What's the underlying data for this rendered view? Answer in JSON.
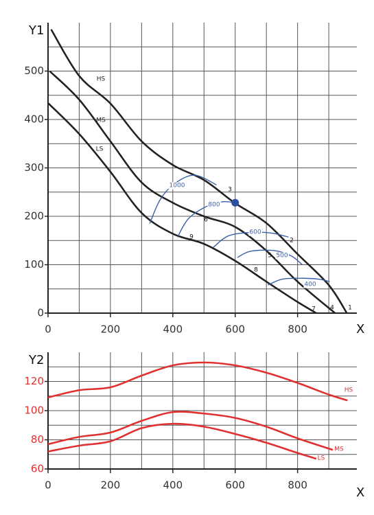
{
  "chart_data": [
    {
      "type": "line",
      "ylabel": "Y1",
      "xlabel": "X",
      "xlim": [
        0,
        990
      ],
      "ylim": [
        0,
        600
      ],
      "xticks": [
        0,
        200,
        400,
        600,
        800
      ],
      "yticks": [
        0,
        100,
        200,
        300,
        400,
        500
      ],
      "xgrid": [
        0,
        100,
        200,
        300,
        400,
        500,
        600,
        700,
        800,
        900
      ],
      "ygrid": [
        0,
        50,
        100,
        150,
        200,
        250,
        300,
        350,
        400,
        450,
        500,
        550
      ],
      "tick_color": "#333",
      "series": [
        {
          "name": "HS",
          "color": "#222",
          "x": [
            10,
            100,
            200,
            300,
            400,
            500,
            600,
            700,
            800,
            900,
            958
          ],
          "values": [
            586,
            490,
            433,
            355,
            306,
            275,
            227,
            186,
            122,
            58,
            0
          ]
        },
        {
          "name": "MS",
          "color": "#222",
          "x": [
            5,
            100,
            200,
            300,
            400,
            500,
            600,
            700,
            800,
            920
          ],
          "values": [
            500,
            441,
            355,
            270,
            228,
            200,
            178,
            129,
            65,
            0
          ]
        },
        {
          "name": "LS",
          "color": "#222",
          "x": [
            0,
            100,
            200,
            300,
            400,
            500,
            600,
            700,
            800,
            860
          ],
          "values": [
            434,
            370,
            292,
            207,
            164,
            143,
            108,
            65,
            23,
            0
          ]
        },
        {
          "name": "1000",
          "color": "#3a5fa8",
          "x": [
            326,
            360,
            407,
            470,
            540
          ],
          "values": [
            185,
            235,
            268,
            285,
            265
          ]
        },
        {
          "name": "800",
          "color": "#3a5fa8",
          "x": [
            415,
            450,
            507,
            560,
            600
          ],
          "values": [
            157,
            195,
            220,
            230,
            228
          ]
        },
        {
          "name": "600",
          "color": "#3a5fa8",
          "x": [
            530,
            580,
            661,
            720,
            771
          ],
          "values": [
            136,
            160,
            167,
            165,
            157
          ]
        },
        {
          "name": "500",
          "color": "#3a5fa8",
          "x": [
            607,
            650,
            727,
            780,
            815
          ],
          "values": [
            115,
            128,
            129,
            118,
            100
          ]
        },
        {
          "name": "400",
          "color": "#3a5fa8",
          "x": [
            705,
            750,
            815,
            870,
            903
          ],
          "values": [
            58,
            70,
            72,
            70,
            65
          ]
        }
      ],
      "point": {
        "x": 600,
        "y": 228,
        "color": "#2d4ea3"
      },
      "annotations": [
        "1",
        "2",
        "3",
        "4",
        "5",
        "6",
        "7",
        "8",
        "9"
      ]
    },
    {
      "type": "line",
      "ylabel": "Y2",
      "xlabel": "X",
      "xlim": [
        0,
        990
      ],
      "ylim": [
        60,
        140
      ],
      "xticks": [
        0,
        200,
        400,
        600,
        800
      ],
      "yticks": [
        60,
        80,
        100,
        120
      ],
      "xgrid": [
        0,
        100,
        200,
        300,
        400,
        500,
        600,
        700,
        800,
        900
      ],
      "ygrid": [
        60,
        70,
        80,
        90,
        100,
        110,
        120,
        130
      ],
      "tick_color": "#e03030",
      "series": [
        {
          "name": "HS",
          "color": "#e03030",
          "x": [
            0,
            100,
            200,
            300,
            400,
            500,
            600,
            700,
            800,
            900,
            960
          ],
          "values": [
            109,
            114,
            116,
            124,
            131,
            133,
            131,
            126,
            119,
            111,
            107
          ]
        },
        {
          "name": "MS",
          "color": "#e03030",
          "x": [
            0,
            100,
            200,
            300,
            400,
            500,
            600,
            700,
            800,
            900,
            913
          ],
          "values": [
            77,
            82,
            85,
            93,
            99,
            98,
            95,
            89,
            81,
            74,
            73
          ]
        },
        {
          "name": "LS",
          "color": "#e03030",
          "x": [
            0,
            100,
            200,
            300,
            400,
            500,
            600,
            700,
            800,
            860
          ],
          "values": [
            72,
            76,
            79,
            88,
            91,
            89,
            84,
            78,
            71,
            67
          ]
        }
      ]
    }
  ]
}
